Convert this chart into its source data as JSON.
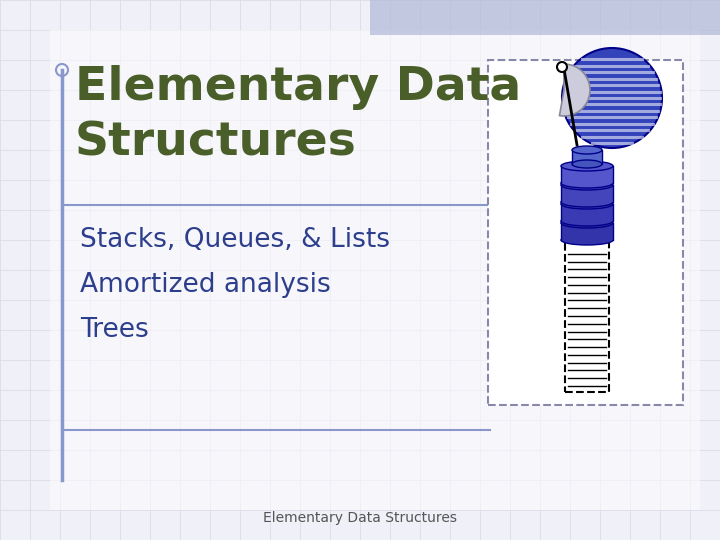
{
  "bg_color": "#f0f0f8",
  "grid_color": "#d8d8e8",
  "title_line1": "Elementary Data",
  "title_line2": "Structures",
  "title_color": "#4a5e2a",
  "bullet_items": [
    "Stacks, Queues, & Lists",
    "Amortized analysis",
    "Trees"
  ],
  "bullet_color": "#2c3e8c",
  "footer_text": "Elementary Data Structures",
  "footer_color": "#555555",
  "left_line_color": "#8898cc",
  "divider_color": "#8898cc",
  "top_accent_color": "#b0b8d8"
}
